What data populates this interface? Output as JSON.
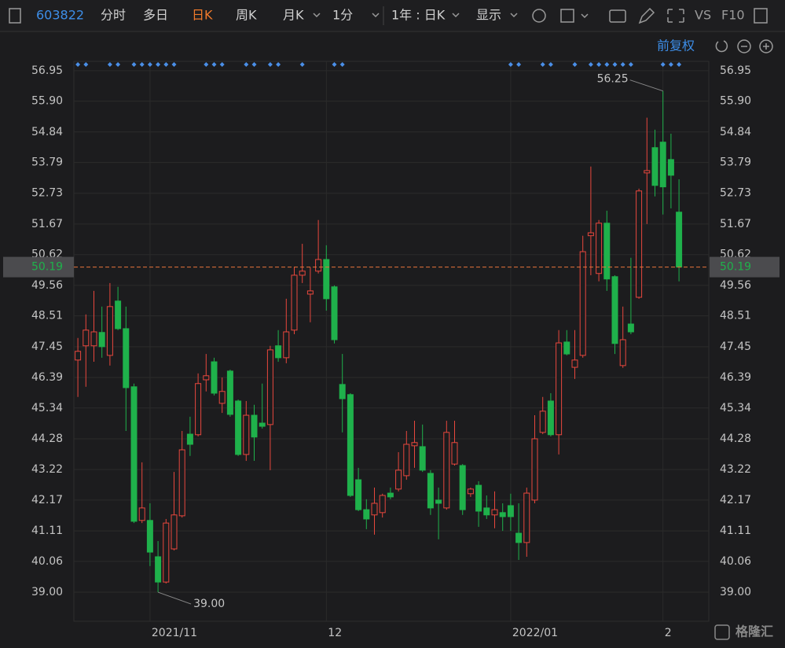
{
  "toolbar": {
    "code": "603822",
    "tabs": [
      "分时",
      "多日",
      "日K",
      "周K",
      "月K",
      "1分"
    ],
    "range": "1年 : 日K",
    "display": "显示",
    "vs": "VS",
    "f10": "F10",
    "adjust": "前复权"
  },
  "chart_data": {
    "type": "candlestick",
    "categories": [
      null,
      null,
      null,
      null,
      null,
      null,
      null,
      null,
      null,
      "2021/11",
      null,
      null,
      null,
      null,
      null,
      null,
      null,
      null,
      null,
      null,
      null,
      null,
      null,
      null,
      null,
      null,
      null,
      null,
      null,
      null,
      null,
      "12",
      null,
      null,
      null,
      null,
      null,
      null,
      null,
      null,
      null,
      null,
      null,
      null,
      null,
      null,
      null,
      null,
      null,
      null,
      null,
      null,
      null,
      null,
      "2022/01",
      null,
      null,
      null,
      null,
      null,
      null,
      null,
      null,
      null,
      null,
      null,
      null,
      null,
      null,
      null,
      null,
      null,
      null,
      "2",
      null,
      null
    ],
    "open": [
      46.99,
      47.48,
      47.48,
      47.94,
      47.15,
      49.02,
      48.07,
      46.07,
      41.47,
      41.47,
      40.22,
      39.35,
      40.49,
      41.63,
      44.44,
      44.42,
      46.31,
      46.93,
      45.5,
      46.61,
      45.58,
      43.74,
      45.09,
      44.82,
      44.77,
      47.48,
      47.07,
      48.02,
      49.91,
      49.26,
      50.05,
      50.45,
      49.51,
      46.15,
      45.8,
      42.87,
      41.84,
      41.66,
      41.74,
      42.41,
      42.55,
      43.01,
      44.04,
      44.01,
      43.09,
      42.17,
      41.9,
      43.41,
      43.36,
      42.39,
      42.68,
      41.9,
      41.66,
      41.74,
      41.98,
      41.03,
      40.71,
      42.17,
      44.5,
      45.58,
      44.42,
      47.61,
      46.74,
      47.15,
      51.27,
      49.97,
      51.7,
      49.86,
      46.8,
      48.23,
      49.15,
      53.43,
      54.3,
      54.49,
      53.89,
      52.08
    ],
    "high": [
      47.75,
      48.56,
      49.37,
      48.83,
      49.64,
      49.51,
      48.83,
      46.18,
      43.47,
      42.06,
      40.76,
      41.52,
      43.14,
      44.55,
      45.04,
      46.53,
      47.2,
      47.07,
      46.39,
      46.66,
      45.63,
      45.58,
      45.45,
      46.18,
      47.48,
      48.02,
      49.1,
      50.18,
      50.99,
      50.18,
      51.81,
      50.94,
      49.56,
      47.2,
      45.85,
      43.28,
      42.2,
      42.6,
      42.39,
      42.6,
      43.82,
      44.55,
      44.9,
      44.77,
      43.2,
      42.6,
      44.9,
      44.9,
      43.41,
      42.6,
      42.82,
      42.33,
      42.47,
      42.06,
      42.39,
      42.06,
      42.6,
      45.09,
      45.72,
      45.85,
      48.02,
      48.02,
      48.02,
      51.27,
      53.65,
      51.81,
      52.13,
      49.91,
      48.83,
      50.51,
      52.89,
      55.33,
      54.92,
      56.25,
      54.78,
      53.21
    ],
    "low": [
      45.72,
      46.07,
      46.93,
      47.07,
      46.8,
      48.02,
      44.55,
      41.38,
      41.38,
      39.9,
      39.0,
      39.3,
      40.44,
      41.57,
      43.69,
      44.36,
      45.91,
      45.77,
      45.17,
      45.04,
      43.69,
      43.52,
      43.52,
      44.63,
      43.2,
      46.93,
      46.88,
      47.88,
      49.64,
      48.29,
      49.97,
      48.69,
      47.56,
      44.5,
      42.28,
      41.79,
      41.17,
      40.98,
      41.57,
      42.2,
      42.47,
      42.87,
      43.28,
      43.14,
      41.66,
      40.82,
      41.84,
      43.36,
      41.66,
      42.28,
      41.25,
      41.52,
      41.2,
      41.11,
      41.11,
      40.11,
      40.22,
      42.06,
      44.44,
      44.36,
      43.74,
      47.15,
      46.34,
      47.07,
      49.91,
      49.7,
      49.37,
      47.2,
      46.72,
      47.88,
      49.1,
      51.67,
      52.62,
      52.0,
      52.21,
      49.7
    ],
    "close": [
      47.29,
      48.02,
      47.96,
      47.45,
      48.83,
      48.07,
      46.04,
      41.44,
      41.9,
      40.38,
      39.35,
      41.38,
      41.66,
      43.9,
      44.09,
      46.18,
      46.45,
      45.85,
      45.91,
      45.12,
      43.74,
      45.09,
      44.34,
      44.71,
      47.34,
      47.07,
      47.96,
      49.91,
      50.05,
      49.37,
      50.45,
      49.1,
      47.69,
      45.66,
      42.33,
      41.84,
      41.52,
      42.06,
      42.33,
      42.28,
      43.2,
      44.09,
      44.15,
      43.2,
      41.9,
      42.06,
      44.5,
      44.15,
      41.84,
      42.55,
      41.79,
      41.66,
      41.84,
      41.6,
      41.6,
      40.71,
      42.41,
      44.28,
      45.23,
      44.42,
      47.58,
      47.2,
      46.99,
      50.72,
      51.37,
      51.7,
      49.78,
      47.56,
      47.69,
      47.96,
      52.81,
      53.51,
      53.0,
      52.95,
      53.35,
      50.19
    ],
    "up_color": "#e8473d",
    "down_color": "#1fb14b",
    "ylim": [
      38.0,
      57.27
    ],
    "yticks": [
      {
        "value": 56.95,
        "label": "56.95"
      },
      {
        "value": 55.9,
        "label": "55.90"
      },
      {
        "value": 54.84,
        "label": "54.84"
      },
      {
        "value": 53.79,
        "label": "53.79"
      },
      {
        "value": 52.73,
        "label": "52.73"
      },
      {
        "value": 51.67,
        "label": "51.67"
      },
      {
        "value": 50.62,
        "label": "50.62"
      },
      {
        "value": 49.56,
        "label": "49.56"
      },
      {
        "value": 48.51,
        "label": "48.51"
      },
      {
        "value": 47.45,
        "label": "47.45"
      },
      {
        "value": 46.39,
        "label": "46.39"
      },
      {
        "value": 45.34,
        "label": "45.34"
      },
      {
        "value": 44.28,
        "label": "44.28"
      },
      {
        "value": 43.22,
        "label": "43.22"
      },
      {
        "value": 42.17,
        "label": "42.17"
      },
      {
        "value": 41.11,
        "label": "41.11"
      },
      {
        "value": 40.06,
        "label": "40.06"
      },
      {
        "value": 39.0,
        "label": "39.00"
      }
    ],
    "grid": true,
    "last_price": 50.19,
    "annotations": [
      {
        "text": "56.25",
        "value": 56.25
      },
      {
        "text": "39.00",
        "value": 39.0
      }
    ],
    "watermark": "格隆汇"
  }
}
